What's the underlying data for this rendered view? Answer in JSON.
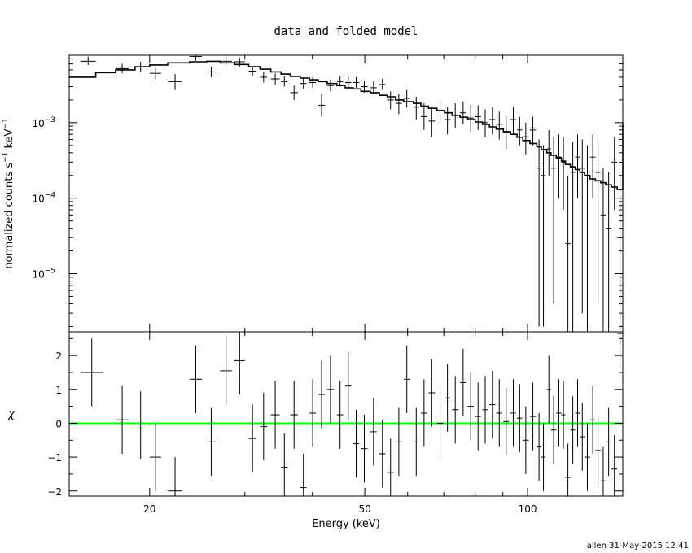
{
  "chart_data": {
    "type": "scatter",
    "title": "data and folded model",
    "xlabel": "Energy (keV)",
    "x_scale": "log",
    "xlim": [
      14.2,
      150
    ],
    "x_ticks": [
      {
        "v": 20,
        "label": "20"
      },
      {
        "v": 50,
        "label": "50"
      },
      {
        "v": 100,
        "label": "100"
      }
    ],
    "credit": "allen 31-May-2015 12:41",
    "top_panel": {
      "ylabel_main": "normalized counts s",
      "ylabel_sup1": "−1",
      "ylabel_mid": " keV",
      "ylabel_sup2": "−1",
      "y_scale": "log",
      "ylim": [
        1.7e-06,
        0.0078
      ],
      "y_ticks": [
        {
          "v": 0.001,
          "base": "10",
          "exp": "−3"
        },
        {
          "v": 0.0001,
          "base": "10",
          "exp": "−4"
        },
        {
          "v": 1e-05,
          "base": "10",
          "exp": "−5"
        }
      ],
      "data": [
        [
          14.9,
          15.9,
          0.0065,
          0.0058,
          0.0075
        ],
        [
          17.3,
          18.3,
          0.0052,
          0.0045,
          0.006
        ],
        [
          18.8,
          19.7,
          0.0055,
          0.0047,
          0.0064
        ],
        [
          20.0,
          21.0,
          0.0045,
          0.0038,
          0.0053
        ],
        [
          21.6,
          23.0,
          0.0035,
          0.0027,
          0.0044
        ],
        [
          23.7,
          25.0,
          0.0075,
          0.0066,
          0.0078
        ],
        [
          25.5,
          26.5,
          0.0047,
          0.004,
          0.0055
        ],
        [
          27.0,
          28.4,
          0.0065,
          0.0056,
          0.0074
        ],
        [
          28.7,
          30.0,
          0.0064,
          0.0055,
          0.0072
        ],
        [
          30.5,
          31.5,
          0.0048,
          0.0042,
          0.0055
        ],
        [
          32.0,
          33.0,
          0.004,
          0.0034,
          0.0047
        ],
        [
          33.5,
          34.8,
          0.0038,
          0.0032,
          0.0045
        ],
        [
          35.0,
          36.0,
          0.0035,
          0.003,
          0.0041
        ],
        [
          36.4,
          37.6,
          0.0025,
          0.002,
          0.0031
        ],
        [
          38.0,
          39.0,
          0.0033,
          0.0028,
          0.0039
        ],
        [
          39.5,
          40.6,
          0.0034,
          0.0029,
          0.004
        ],
        [
          41.0,
          42.2,
          0.0017,
          0.0012,
          0.0024
        ],
        [
          42.6,
          43.8,
          0.0031,
          0.0026,
          0.0037
        ],
        [
          44.4,
          45.6,
          0.0035,
          0.003,
          0.0041
        ],
        [
          46.0,
          47.2,
          0.0034,
          0.0029,
          0.004
        ],
        [
          47.6,
          48.8,
          0.0034,
          0.0029,
          0.004
        ],
        [
          49.2,
          50.6,
          0.003,
          0.0025,
          0.0036
        ],
        [
          51.2,
          52.6,
          0.0029,
          0.0024,
          0.0035
        ],
        [
          53.2,
          54.6,
          0.0032,
          0.0027,
          0.0038
        ],
        [
          55.0,
          56.6,
          0.002,
          0.0015,
          0.0026
        ],
        [
          57.0,
          58.6,
          0.0018,
          0.0013,
          0.0024
        ],
        [
          59.0,
          60.6,
          0.0021,
          0.0016,
          0.0027
        ],
        [
          61.5,
          63.0,
          0.0016,
          0.0011,
          0.0022
        ],
        [
          63.5,
          65.2,
          0.0012,
          0.0008,
          0.0018
        ],
        [
          65.6,
          67.4,
          0.00105,
          0.00065,
          0.0016
        ],
        [
          68.0,
          69.8,
          0.00145,
          0.001,
          0.002
        ],
        [
          70.2,
          72.0,
          0.0011,
          0.0007,
          0.0016
        ],
        [
          72.5,
          74.5,
          0.00125,
          0.00085,
          0.0018
        ],
        [
          75.0,
          77.0,
          0.00135,
          0.00095,
          0.0019
        ],
        [
          77.5,
          79.5,
          0.00115,
          0.00075,
          0.0017
        ],
        [
          80.0,
          82.0,
          0.0012,
          0.0008,
          0.0017
        ],
        [
          82.5,
          84.5,
          0.001,
          0.00065,
          0.0015
        ],
        [
          85.0,
          87.2,
          0.0011,
          0.0007,
          0.0016
        ],
        [
          87.5,
          89.8,
          0.00095,
          0.0006,
          0.0014
        ],
        [
          90.2,
          92.4,
          0.00075,
          0.00045,
          0.0012
        ],
        [
          93.0,
          95.2,
          0.0011,
          0.0007,
          0.0016
        ],
        [
          95.6,
          97.8,
          0.0008,
          0.0005,
          0.0012
        ],
        [
          98.0,
          100.5,
          0.00065,
          0.00038,
          0.001
        ],
        [
          101.0,
          103.6,
          0.0008,
          0.0005,
          0.0012
        ],
        [
          104.0,
          106.0,
          0.00025,
          2e-06,
          0.0006
        ],
        [
          106.0,
          108.0,
          0.0002,
          2e-06,
          0.0005
        ],
        [
          108.5,
          110.5,
          0.00045,
          0.0002,
          0.0008
        ],
        [
          110.5,
          113.0,
          0.00025,
          4e-06,
          0.00065
        ],
        [
          113.0,
          115.5,
          0.00035,
          0.0001,
          0.0007
        ],
        [
          115.5,
          117.5,
          0.0003,
          7e-05,
          0.00065
        ],
        [
          117.5,
          120.0,
          2.5e-05,
          1e-06,
          0.0002
        ],
        [
          120.0,
          122.5,
          0.00022,
          1e-06,
          0.00055
        ],
        [
          122.5,
          125.0,
          0.00035,
          0.0001,
          0.0007
        ],
        [
          125.0,
          127.5,
          0.00025,
          3e-06,
          0.0006
        ],
        [
          127.5,
          130.5,
          0.0002,
          1e-06,
          0.0005
        ],
        [
          130.5,
          133.5,
          0.00035,
          0.0001,
          0.0007
        ],
        [
          133.5,
          136.5,
          0.00022,
          4e-06,
          0.00055
        ],
        [
          136.5,
          139.5,
          6e-05,
          1e-06,
          0.00025
        ],
        [
          139.5,
          143.0,
          4e-05,
          1e-06,
          0.00022
        ],
        [
          143.0,
          146.5,
          0.0003,
          7e-05,
          0.00065
        ],
        [
          146.5,
          150.0,
          3e-05,
          1e-06,
          0.0002
        ]
      ],
      "model_x": [
        14.2,
        15.9,
        17.3,
        18.8,
        20.0,
        21.6,
        23.7,
        25.5,
        27.0,
        28.7,
        30.5,
        32.0,
        33.5,
        35.0,
        36.4,
        38.0,
        39.5,
        41.0,
        42.6,
        44.4,
        46.0,
        47.6,
        49.2,
        51.2,
        53.2,
        55.0,
        57.0,
        59.0,
        61.5,
        63.5,
        65.6,
        68.0,
        70.2,
        72.5,
        75.0,
        77.5,
        80.0,
        82.5,
        85.0,
        87.5,
        90.2,
        93.0,
        95.6,
        98.0,
        101.0,
        104.0,
        106.0,
        108.5,
        110.5,
        113.0,
        115.5,
        117.5,
        120.0,
        122.5,
        125.0,
        127.5,
        130.5,
        133.5,
        136.5,
        139.5,
        143.0,
        146.5,
        150.0
      ],
      "model_y": [
        0.004,
        0.0046,
        0.005,
        0.0055,
        0.0058,
        0.0062,
        0.0064,
        0.0065,
        0.0062,
        0.0059,
        0.0055,
        0.0051,
        0.0047,
        0.0044,
        0.0041,
        0.0039,
        0.0037,
        0.0035,
        0.0033,
        0.0031,
        0.0029,
        0.0028,
        0.0026,
        0.0025,
        0.0023,
        0.0022,
        0.002,
        0.0019,
        0.0018,
        0.00165,
        0.00155,
        0.00145,
        0.00135,
        0.00125,
        0.00118,
        0.0011,
        0.00102,
        0.00095,
        0.00088,
        0.00082,
        0.00076,
        0.0007,
        0.00064,
        0.00058,
        0.00053,
        0.00048,
        0.00044,
        0.0004,
        0.00037,
        0.00034,
        0.00031,
        0.00028,
        0.00026,
        0.00024,
        0.00022,
        0.0002,
        0.00018,
        0.00017,
        0.00016,
        0.00015,
        0.00014,
        0.00013
      ]
    },
    "bottom_panel": {
      "ylabel": "χ",
      "y_scale": "linear",
      "ylim": [
        -2.15,
        2.7
      ],
      "y_ticks": [
        {
          "v": 2,
          "label": "2"
        },
        {
          "v": 1,
          "label": "1"
        },
        {
          "v": 0,
          "label": "0"
        },
        {
          "v": -1,
          "label": "−1"
        },
        {
          "v": -2,
          "label": "−2"
        }
      ],
      "zero_line_color": "#00ff00",
      "residuals": [
        [
          14.9,
          16.4,
          1.5,
          0.5,
          2.5
        ],
        [
          17.3,
          18.3,
          0.1,
          -0.9,
          1.1
        ],
        [
          18.8,
          19.7,
          -0.05,
          -1.05,
          0.95
        ],
        [
          20.0,
          21.0,
          -1.0,
          -2.0,
          0.0
        ],
        [
          21.6,
          23.0,
          -2.0,
          -2.15,
          -1.0
        ],
        [
          23.7,
          25.0,
          1.3,
          0.3,
          2.3
        ],
        [
          25.5,
          26.5,
          -0.55,
          -1.55,
          0.45
        ],
        [
          27.0,
          28.4,
          1.55,
          0.55,
          2.55
        ],
        [
          28.7,
          30.0,
          1.85,
          0.85,
          2.7
        ],
        [
          30.5,
          31.5,
          -0.45,
          -1.45,
          0.55
        ],
        [
          32.0,
          33.0,
          -0.1,
          -1.1,
          0.9
        ],
        [
          33.5,
          34.8,
          0.25,
          -0.75,
          1.25
        ],
        [
          35.0,
          36.0,
          -1.3,
          -2.15,
          -0.3
        ],
        [
          36.4,
          37.6,
          0.25,
          -0.75,
          1.25
        ],
        [
          38.0,
          39.0,
          -1.9,
          -2.15,
          -0.9
        ],
        [
          39.5,
          40.6,
          0.3,
          -0.7,
          1.3
        ],
        [
          41.0,
          42.2,
          0.85,
          -0.15,
          1.85
        ],
        [
          42.6,
          43.8,
          1.0,
          0.0,
          2.0
        ],
        [
          44.4,
          45.6,
          0.25,
          -0.75,
          1.25
        ],
        [
          46.0,
          47.2,
          1.1,
          0.1,
          2.1
        ],
        [
          47.6,
          48.8,
          -0.6,
          -1.6,
          0.4
        ],
        [
          49.2,
          50.6,
          -0.75,
          -1.75,
          0.25
        ],
        [
          51.2,
          52.6,
          -0.25,
          -1.25,
          0.75
        ],
        [
          53.2,
          54.6,
          -0.9,
          -1.9,
          0.1
        ],
        [
          55.0,
          56.6,
          -1.45,
          -2.15,
          -0.45
        ],
        [
          57.0,
          58.6,
          -0.55,
          -1.55,
          0.45
        ],
        [
          59.0,
          60.6,
          1.3,
          0.3,
          2.3
        ],
        [
          61.5,
          63.0,
          -0.55,
          -1.55,
          0.45
        ],
        [
          63.5,
          65.2,
          0.3,
          -0.7,
          1.3
        ],
        [
          65.6,
          67.4,
          0.9,
          -0.1,
          1.9
        ],
        [
          68.0,
          69.8,
          0.0,
          -1.0,
          1.0
        ],
        [
          70.2,
          72.0,
          0.75,
          -0.25,
          1.75
        ],
        [
          72.5,
          74.5,
          0.4,
          -0.6,
          1.4
        ],
        [
          75.0,
          77.0,
          1.2,
          0.2,
          2.2
        ],
        [
          77.5,
          79.5,
          0.5,
          -0.5,
          1.5
        ],
        [
          80.0,
          82.0,
          0.2,
          -0.8,
          1.2
        ],
        [
          82.5,
          84.5,
          0.4,
          -0.6,
          1.4
        ],
        [
          85.0,
          87.2,
          0.55,
          -0.45,
          1.55
        ],
        [
          87.5,
          89.8,
          0.3,
          -0.7,
          1.3
        ],
        [
          90.2,
          92.4,
          0.05,
          -0.95,
          1.05
        ],
        [
          93.0,
          95.2,
          0.3,
          -0.7,
          1.3
        ],
        [
          95.6,
          97.8,
          0.15,
          -0.85,
          1.15
        ],
        [
          98.0,
          100.5,
          -0.5,
          -1.5,
          0.5
        ],
        [
          101.0,
          103.6,
          0.2,
          -0.8,
          1.2
        ],
        [
          104.0,
          106.0,
          -0.7,
          -1.7,
          0.3
        ],
        [
          106.0,
          108.0,
          -1.0,
          -2.0,
          0.0
        ],
        [
          108.5,
          110.5,
          1.0,
          0.0,
          2.0
        ],
        [
          110.5,
          113.0,
          -0.2,
          -1.2,
          0.8
        ],
        [
          113.0,
          115.5,
          0.3,
          -0.7,
          1.3
        ],
        [
          115.5,
          117.5,
          0.25,
          -0.75,
          1.25
        ],
        [
          117.5,
          120.0,
          -1.6,
          -2.15,
          -0.6
        ],
        [
          120.0,
          122.5,
          -0.2,
          -1.2,
          0.8
        ],
        [
          122.5,
          125.0,
          0.3,
          -0.7,
          1.3
        ],
        [
          125.0,
          127.5,
          -0.4,
          -1.4,
          0.6
        ],
        [
          127.5,
          130.5,
          -1.0,
          -2.0,
          0.0
        ],
        [
          130.5,
          133.5,
          0.1,
          -0.9,
          1.1
        ],
        [
          133.5,
          136.5,
          -0.8,
          -1.8,
          0.2
        ],
        [
          136.5,
          139.5,
          -1.7,
          -2.15,
          -0.7
        ],
        [
          139.5,
          143.0,
          -0.55,
          -1.55,
          0.45
        ],
        [
          143.0,
          146.5,
          -1.35,
          -2.15,
          -0.35
        ],
        [
          146.5,
          150.0,
          2.65,
          1.65,
          2.7
        ]
      ]
    }
  }
}
